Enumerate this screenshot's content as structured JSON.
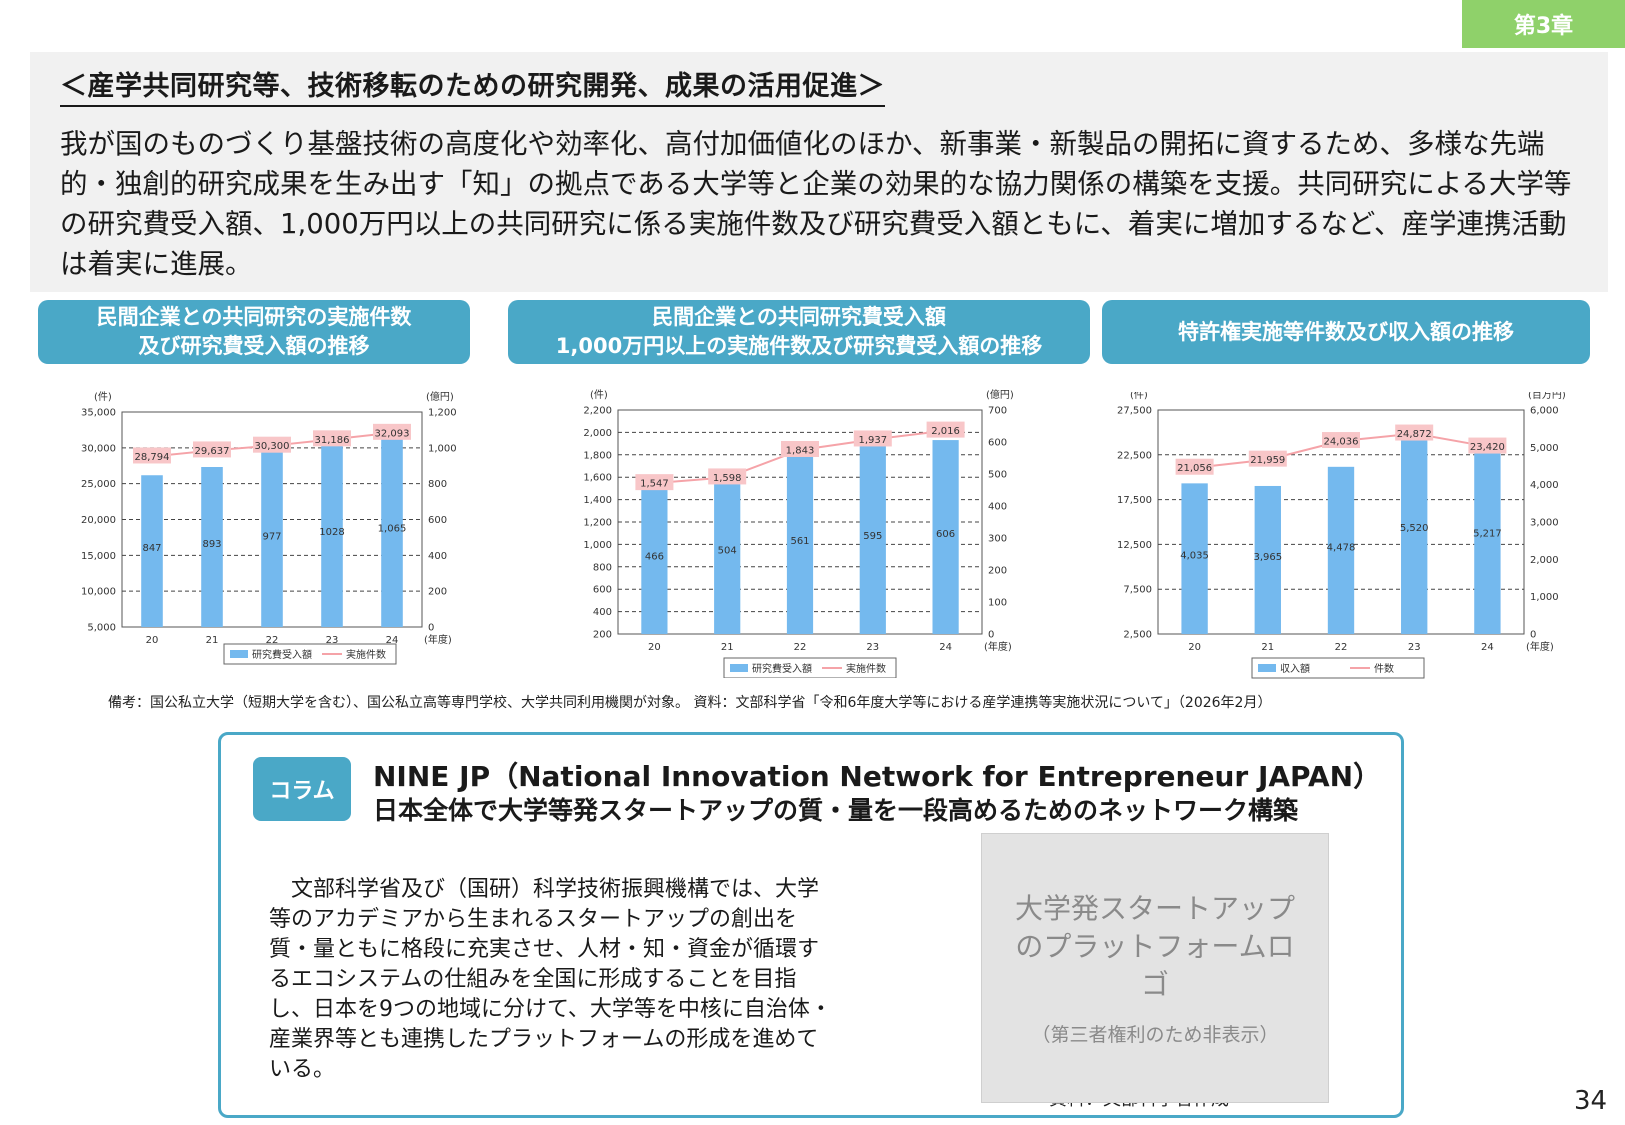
{
  "chapter_tab": "第3章",
  "section_heading": "＜産学共同研究等、技術移転のための研究開発、成果の活用促進＞",
  "intro_text": "我が国のものづくり基盤技術の高度化や効率化、高付加価値化のほか、新事業・新製品の開拓に資するため、多様な先端的・独創的研究成果を生み出す「知」の拠点である大学等と企業の効果的な協力関係の構築を支援。共同研究による大学等の研究費受入額、1,000万円以上の共同研究に係る実施件数及び研究費受入額ともに、着実に増加するなど、産学連携活動は着実に進展。",
  "chart_titles": [
    {
      "line1": "民間企業との共同研究の実施件数",
      "line2": "及び研究費受入額の推移"
    },
    {
      "line1": "民間企業との共同研究費受入額",
      "line2": "1,000万円以上の実施件数及び研究費受入額の推移"
    },
    {
      "line1": "特許権実施等件数及び収入額の推移",
      "line2": ""
    }
  ],
  "chart_data": [
    {
      "type": "bar",
      "categories": [
        "20",
        "21",
        "22",
        "23",
        "24"
      ],
      "xlabel": "(年度)",
      "left_axis": {
        "unit": "(件)",
        "ticks": [
          "35,000",
          "30,000",
          "25,000",
          "20,000",
          "15,000",
          "10,000",
          "5,000"
        ],
        "min": 5000,
        "max": 35000
      },
      "right_axis": {
        "unit": "(億円)",
        "ticks": [
          "1,200",
          "1,000",
          "800",
          "600",
          "400",
          "200",
          "0"
        ],
        "min": 0,
        "max": 1200
      },
      "series": [
        {
          "name": "研究費受入額",
          "kind": "bar",
          "axis": "right",
          "values": [
            847,
            893,
            977,
            1028,
            1065
          ],
          "labels": [
            "847",
            "893",
            "977",
            "1028",
            "1,065"
          ]
        },
        {
          "name": "実施件数",
          "kind": "line",
          "axis": "left",
          "values": [
            28794,
            29637,
            30300,
            31186,
            32093
          ],
          "labels": [
            "28,794",
            "29,637",
            "30,300",
            "31,186",
            "32,093"
          ]
        }
      ],
      "colors": {
        "bar": "#74b9ee",
        "line": "#f5a3a8",
        "label_bg": "#f8c6c8"
      }
    },
    {
      "type": "bar",
      "categories": [
        "20",
        "21",
        "22",
        "23",
        "24"
      ],
      "xlabel": "(年度)",
      "left_axis": {
        "unit": "(件)",
        "ticks": [
          "2,200",
          "2,000",
          "1,800",
          "1,600",
          "1,400",
          "1,200",
          "1,000",
          "800",
          "600",
          "400",
          "200"
        ],
        "min": 200,
        "max": 2200
      },
      "right_axis": {
        "unit": "(億円)",
        "ticks": [
          "700",
          "600",
          "500",
          "400",
          "300",
          "200",
          "100",
          "0"
        ],
        "min": 0,
        "max": 700
      },
      "series": [
        {
          "name": "研究費受入額",
          "kind": "bar",
          "axis": "right",
          "values": [
            466,
            504,
            561,
            595,
            606
          ],
          "labels": [
            "466",
            "504",
            "561",
            "595",
            "606"
          ]
        },
        {
          "name": "実施件数",
          "kind": "line",
          "axis": "left",
          "values": [
            1547,
            1598,
            1843,
            1937,
            2016
          ],
          "labels": [
            "1,547",
            "1,598",
            "1,843",
            "1,937",
            "2,016"
          ]
        }
      ],
      "colors": {
        "bar": "#74b9ee",
        "line": "#f5a3a8",
        "label_bg": "#f8c6c8"
      }
    },
    {
      "type": "bar",
      "categories": [
        "20",
        "21",
        "22",
        "23",
        "24"
      ],
      "xlabel": "(年度)",
      "left_axis": {
        "unit": "(件)",
        "ticks": [
          "27,500",
          "22,500",
          "17,500",
          "12,500",
          "7,500",
          "2,500"
        ],
        "min": 2500,
        "max": 27500
      },
      "right_axis": {
        "unit": "(百万円)",
        "ticks": [
          "6,000",
          "5,000",
          "4,000",
          "3,000",
          "2,000",
          "1,000",
          "0"
        ],
        "min": 0,
        "max": 6000
      },
      "series": [
        {
          "name": "収入額",
          "kind": "bar",
          "axis": "right",
          "values": [
            4035,
            3965,
            4478,
            5520,
            5217
          ],
          "labels": [
            "4,035",
            "3,965",
            "4,478",
            "5,520",
            "5,217"
          ]
        },
        {
          "name": "件数",
          "kind": "line",
          "axis": "left",
          "values": [
            21056,
            21959,
            24036,
            24872,
            23420
          ],
          "labels": [
            "21,056",
            "21,959",
            "24,036",
            "24,872",
            "23,420"
          ]
        }
      ],
      "colors": {
        "bar": "#74b9ee",
        "line": "#f5a3a8",
        "label_bg": "#f8c6c8"
      }
    }
  ],
  "note": "備考：国公私立大学（短期大学を含む）、国公私立高等専門学校、大学共同利用機関が対象。 資料：文部科学省「令和6年度大学等における産学連携等実施状況について」（2026年2月）",
  "column": {
    "badge": "コラム",
    "title1": "NINE JP（National Innovation Network for Entrepreneur JAPAN）",
    "title2": "日本全体で大学等発スタートアップの質・量を一段高めるためのネットワーク構築",
    "body": "　文部科学省及び（国研）科学技術振興機構では、大学等のアカデミアから生まれるスタートアップの創出を質・量ともに格段に充実させ、人材・知・資金が循環するエコシステムの仕組みを全国に形成することを目指し、日本を9つの地域に分けて、大学等を中核に自治体・産業界等とも連携したプラットフォームの形成を進めている。",
    "source": "資料：文部科学省作成",
    "logo_main": "大学発スタートアップのプラットフォームロゴ",
    "logo_sub": "（第三者権利のため非表示）"
  },
  "page_number": "34"
}
